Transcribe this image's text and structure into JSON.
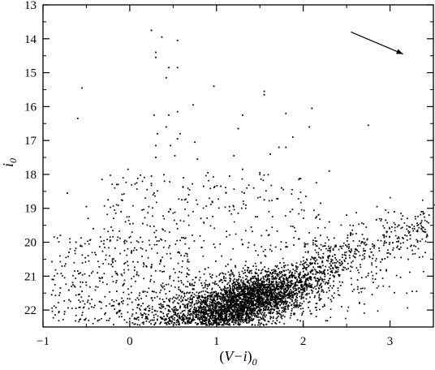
{
  "chart_data": {
    "type": "scatter",
    "title": "",
    "xlabel": {
      "prefix": "(",
      "main": "V−i",
      "suffix": ")",
      "subscript": "0"
    },
    "ylabel": {
      "main": "i",
      "subscript": "0"
    },
    "xlim": [
      -1,
      3.5
    ],
    "ylim": [
      22.5,
      13
    ],
    "y_inverted": true,
    "grid": false,
    "legend": "none",
    "x_ticks": [
      {
        "value": -1,
        "label": "−1"
      },
      {
        "value": 0,
        "label": "0"
      },
      {
        "value": 1,
        "label": "1"
      },
      {
        "value": 2,
        "label": "2"
      },
      {
        "value": 3,
        "label": "3"
      }
    ],
    "y_ticks": [
      {
        "value": 13,
        "label": "13"
      },
      {
        "value": 14,
        "label": "14"
      },
      {
        "value": 15,
        "label": "15"
      },
      {
        "value": 16,
        "label": "16"
      },
      {
        "value": 17,
        "label": "17"
      },
      {
        "value": 18,
        "label": "18"
      },
      {
        "value": 19,
        "label": "19"
      },
      {
        "value": 20,
        "label": "20"
      },
      {
        "value": 21,
        "label": "21"
      },
      {
        "value": 22,
        "label": "22"
      }
    ],
    "reddening_arrow": {
      "x1": 2.55,
      "y1": 13.8,
      "x2": 3.15,
      "y2": 14.45
    },
    "marker_color": "#000000",
    "series": [
      {
        "points": [
          [
            0.25,
            13.75
          ],
          [
            0.37,
            13.95
          ],
          [
            0.55,
            14.05
          ],
          [
            0.3,
            14.4
          ],
          [
            0.3,
            14.55
          ],
          [
            0.45,
            14.85
          ],
          [
            0.55,
            14.85
          ],
          [
            0.42,
            15.15
          ],
          [
            -0.55,
            15.45
          ],
          [
            0.97,
            15.4
          ],
          [
            1.55,
            15.55
          ],
          [
            1.55,
            15.65
          ],
          [
            0.73,
            15.95
          ],
          [
            0.55,
            16.15
          ],
          [
            0.28,
            16.25
          ],
          [
            0.45,
            16.25
          ],
          [
            -0.6,
            16.35
          ],
          [
            1.8,
            16.2
          ],
          [
            2.1,
            16.05
          ],
          [
            1.3,
            16.25
          ],
          [
            0.42,
            16.6
          ],
          [
            0.32,
            16.8
          ],
          [
            0.58,
            16.8
          ],
          [
            1.25,
            16.65
          ],
          [
            1.88,
            16.9
          ],
          [
            2.07,
            16.6
          ],
          [
            2.75,
            16.55
          ],
          [
            0.55,
            16.95
          ],
          [
            0.3,
            17.15
          ],
          [
            0.47,
            17.15
          ],
          [
            0.75,
            17.05
          ],
          [
            1.72,
            17.2
          ],
          [
            1.8,
            17.2
          ],
          [
            0.52,
            17.45
          ],
          [
            0.3,
            17.5
          ],
          [
            1.2,
            17.45
          ],
          [
            1.62,
            17.4
          ],
          [
            0.78,
            17.55
          ],
          [
            -0.02,
            17.85
          ],
          [
            0.9,
            17.95
          ],
          [
            1.3,
            17.85
          ],
          [
            1.5,
            17.95
          ],
          [
            2.3,
            17.9
          ],
          [
            0.25,
            18.05
          ],
          [
            0.62,
            18.1
          ],
          [
            1.15,
            18.05
          ],
          [
            -0.32,
            18.15
          ],
          [
            0.08,
            18.25
          ],
          [
            0.4,
            18.2
          ],
          [
            1.95,
            18.15
          ],
          [
            -0.15,
            18.3
          ],
          [
            0.2,
            18.45
          ],
          [
            0.85,
            18.35
          ],
          [
            1.05,
            18.35
          ],
          [
            1.75,
            18.4
          ],
          [
            -0.72,
            18.55
          ],
          [
            0.28,
            18.55
          ],
          [
            0.68,
            18.6
          ],
          [
            1.32,
            18.55
          ],
          [
            2.03,
            18.65
          ],
          [
            -0.25,
            18.75
          ],
          [
            0.6,
            18.75
          ],
          [
            0.95,
            18.8
          ],
          [
            1.55,
            18.75
          ],
          [
            2.2,
            18.85
          ],
          [
            -0.5,
            18.95
          ],
          [
            0.22,
            18.95
          ],
          [
            1.15,
            18.95
          ],
          [
            2.85,
            18.95
          ],
          [
            3.38,
            19.1
          ],
          [
            3.52,
            18.9
          ],
          [
            3.05,
            19.1
          ],
          [
            -0.1,
            19.1
          ],
          [
            0.45,
            19.1
          ],
          [
            1.85,
            19.1
          ],
          [
            2.5,
            19.2
          ],
          [
            3.2,
            19.3
          ],
          [
            3.45,
            19.2
          ],
          [
            2.95,
            19.35
          ],
          [
            -0.48,
            19.3
          ],
          [
            3.35,
            19.45
          ],
          [
            0.82,
            19.3
          ],
          [
            1.45,
            19.25
          ],
          [
            -0.05,
            19.4
          ],
          [
            0.15,
            19.45
          ],
          [
            2.3,
            19.4
          ],
          [
            3.1,
            19.5
          ],
          [
            -0.42,
            19.6
          ],
          [
            0.55,
            19.6
          ],
          [
            3.4,
            19.7
          ],
          [
            3.1,
            19.85
          ],
          [
            2.7,
            19.9
          ],
          [
            -0.8,
            19.8
          ],
          [
            0.3,
            19.85
          ],
          [
            -0.62,
            20.0
          ],
          [
            -0.3,
            20.05
          ],
          [
            0.1,
            20.0
          ],
          [
            -0.7,
            20.3
          ],
          [
            -0.48,
            20.4
          ],
          [
            -0.2,
            20.55
          ],
          [
            -0.75,
            20.7
          ],
          [
            -0.6,
            20.85
          ],
          [
            -0.88,
            21.1
          ],
          [
            -0.35,
            21.05
          ],
          [
            -0.8,
            21.35
          ],
          [
            -0.55,
            21.45
          ],
          [
            -0.9,
            21.55
          ],
          [
            -0.7,
            21.7
          ],
          [
            -0.62,
            21.95
          ],
          [
            -0.75,
            22.05
          ],
          [
            -0.55,
            22.15
          ],
          [
            0.6,
            22.2
          ],
          [
            0.2,
            22.25
          ],
          [
            -0.15,
            22.1
          ],
          [
            0.0,
            22.25
          ],
          [
            0.4,
            22.3
          ],
          [
            0.85,
            22.1
          ],
          [
            1.15,
            22.0
          ],
          [
            1.5,
            21.8
          ],
          [
            1.05,
            22.2
          ],
          [
            0.45,
            22.4
          ],
          [
            -0.35,
            21.75
          ],
          [
            -0.15,
            21.45
          ],
          [
            2.35,
            21.15
          ],
          [
            2.2,
            21.25
          ]
        ]
      }
    ]
  }
}
